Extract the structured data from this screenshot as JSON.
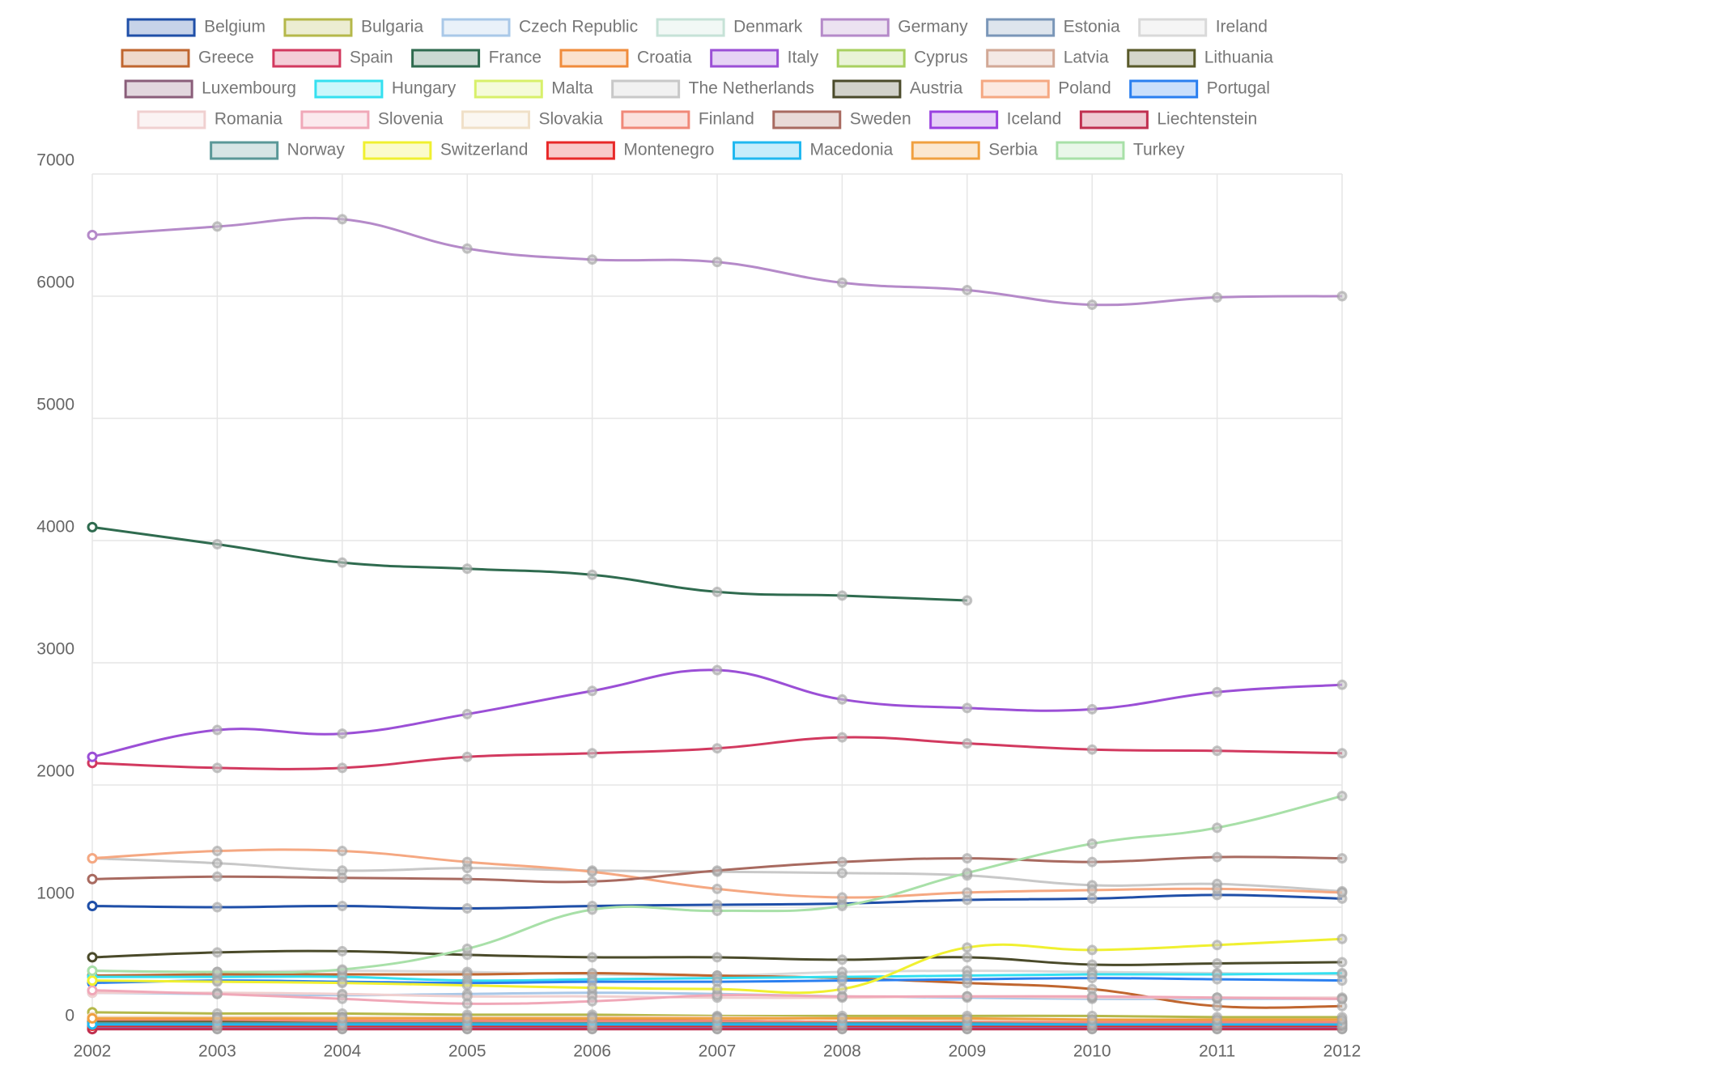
{
  "chart_data": {
    "type": "line",
    "categories": [
      "2002",
      "2003",
      "2004",
      "2005",
      "2006",
      "2007",
      "2008",
      "2009",
      "2010",
      "2011",
      "2012"
    ],
    "ylim": [
      0,
      7000
    ],
    "yticks": [
      0,
      1000,
      2000,
      3000,
      4000,
      5000,
      6000,
      7000
    ],
    "grid": true,
    "legend": "top",
    "series": [
      {
        "name": "Belgium",
        "color": "#1f4fa8",
        "values": [
          1010,
          1000,
          1010,
          990,
          1010,
          1020,
          1030,
          1060,
          1070,
          1100,
          1070
        ]
      },
      {
        "name": "Bulgaria",
        "color": "#b5b84a",
        "values": [
          140,
          130,
          130,
          120,
          120,
          110,
          110,
          110,
          110,
          100,
          100
        ]
      },
      {
        "name": "Czech Republic",
        "color": "#a9c8e8",
        "values": [
          300,
          290,
          280,
          290,
          300,
          290,
          270,
          260,
          250,
          250,
          250
        ]
      },
      {
        "name": "Denmark",
        "color": "#c6e2d7",
        "values": [
          80,
          80,
          70,
          70,
          80,
          60,
          60,
          50,
          50,
          40,
          40
        ]
      },
      {
        "name": "Germany",
        "color": "#b58ac9",
        "values": [
          6500,
          6570,
          6630,
          6390,
          6300,
          6280,
          6110,
          6050,
          5930,
          5990,
          6000
        ]
      },
      {
        "name": "Estonia",
        "color": "#7a96b8",
        "values": [
          60,
          60,
          50,
          50,
          60,
          50,
          40,
          30,
          30,
          30,
          30
        ]
      },
      {
        "name": "Ireland",
        "color": "#d9d9d9",
        "values": [
          480,
          470,
          480,
          470,
          450,
          440,
          470,
          480,
          470,
          460,
          450
        ]
      },
      {
        "name": "Greece",
        "color": "#c0662f",
        "values": [
          440,
          450,
          450,
          450,
          460,
          440,
          420,
          380,
          330,
          190,
          190
        ]
      },
      {
        "name": "Spain",
        "color": "#d2395f",
        "values": [
          2180,
          2140,
          2140,
          2230,
          2260,
          2300,
          2390,
          2340,
          2290,
          2280,
          2260
        ]
      },
      {
        "name": "France",
        "color": "#2f6b4f",
        "values": [
          4110,
          3970,
          3820,
          3770,
          3720,
          3580,
          3550,
          3510,
          null,
          null,
          null
        ]
      },
      {
        "name": "Croatia",
        "color": "#f08c3c",
        "values": [
          100,
          100,
          100,
          90,
          100,
          100,
          90,
          80,
          70,
          70,
          60
        ]
      },
      {
        "name": "Italy",
        "color": "#9b4fd6",
        "values": [
          2230,
          2450,
          2420,
          2580,
          2770,
          2940,
          2700,
          2630,
          2620,
          2760,
          2820
        ]
      },
      {
        "name": "Cyprus",
        "color": "#a8d060",
        "values": [
          30,
          30,
          30,
          30,
          30,
          30,
          30,
          20,
          20,
          20,
          20
        ]
      },
      {
        "name": "Latvia",
        "color": "#d2a896",
        "values": [
          60,
          60,
          60,
          60,
          60,
          60,
          50,
          40,
          30,
          30,
          30
        ]
      },
      {
        "name": "Lithuania",
        "color": "#595a2a",
        "values": [
          70,
          70,
          70,
          70,
          80,
          70,
          60,
          50,
          40,
          40,
          40
        ]
      },
      {
        "name": "Luxembourg",
        "color": "#8a5e7a",
        "values": [
          10,
          10,
          10,
          10,
          10,
          10,
          10,
          10,
          10,
          10,
          10
        ]
      },
      {
        "name": "Hungary",
        "color": "#35e0f0",
        "values": [
          430,
          430,
          430,
          400,
          410,
          420,
          430,
          440,
          450,
          450,
          460
        ]
      },
      {
        "name": "Malta",
        "color": "#d8f06a",
        "values": [
          5,
          5,
          5,
          5,
          5,
          5,
          5,
          5,
          5,
          5,
          5
        ]
      },
      {
        "name": "The Netherlands",
        "color": "#c8c8c8",
        "values": [
          1400,
          1360,
          1300,
          1320,
          1300,
          1290,
          1280,
          1260,
          1180,
          1190,
          1130
        ]
      },
      {
        "name": "Austria",
        "color": "#4a4a2a",
        "values": [
          590,
          630,
          640,
          610,
          590,
          590,
          570,
          590,
          530,
          540,
          550
        ]
      },
      {
        "name": "Poland",
        "color": "#f5a882",
        "values": [
          1400,
          1460,
          1460,
          1370,
          1290,
          1150,
          1080,
          1120,
          1140,
          1150,
          1120
        ]
      },
      {
        "name": "Portugal",
        "color": "#2a7ff0",
        "values": [
          380,
          400,
          390,
          380,
          390,
          390,
          400,
          410,
          420,
          410,
          400
        ]
      },
      {
        "name": "Romania",
        "color": "#f0d0d0",
        "values": [
          300,
          300,
          290,
          270,
          270,
          260,
          260,
          270,
          260,
          260,
          260
        ]
      },
      {
        "name": "Slovenia",
        "color": "#f0a8b8",
        "values": [
          320,
          290,
          250,
          210,
          230,
          280,
          270,
          270,
          270,
          260,
          250
        ]
      },
      {
        "name": "Slovakia",
        "color": "#f0e0c8",
        "values": [
          100,
          100,
          100,
          100,
          100,
          100,
          90,
          80,
          70,
          60,
          60
        ]
      },
      {
        "name": "Finland",
        "color": "#f08878",
        "values": [
          80,
          80,
          70,
          70,
          70,
          70,
          60,
          60,
          60,
          60,
          60
        ]
      },
      {
        "name": "Sweden",
        "color": "#a86a60",
        "values": [
          1230,
          1250,
          1240,
          1230,
          1210,
          1300,
          1370,
          1400,
          1370,
          1410,
          1400
        ]
      },
      {
        "name": "Iceland",
        "color": "#9a40e0",
        "values": [
          5,
          5,
          5,
          5,
          5,
          5,
          5,
          5,
          5,
          5,
          5
        ]
      },
      {
        "name": "Liechtenstein",
        "color": "#c03050",
        "values": [
          2,
          2,
          2,
          2,
          2,
          2,
          2,
          2,
          2,
          2,
          2
        ]
      },
      {
        "name": "Norway",
        "color": "#5a9898",
        "values": [
          50,
          50,
          50,
          50,
          50,
          50,
          50,
          50,
          40,
          40,
          40
        ]
      },
      {
        "name": "Switzerland",
        "color": "#f0f030",
        "values": [
          400,
          390,
          380,
          360,
          340,
          330,
          330,
          670,
          650,
          690,
          740
        ]
      },
      {
        "name": "Montenegro",
        "color": "#e82828",
        "values": [
          30,
          30,
          30,
          30,
          30,
          30,
          30,
          30,
          30,
          30,
          30
        ]
      },
      {
        "name": "Macedonia",
        "color": "#20b8f0",
        "values": [
          40,
          40,
          40,
          40,
          40,
          40,
          40,
          40,
          40,
          40,
          40
        ]
      },
      {
        "name": "Serbia",
        "color": "#f0a040",
        "values": [
          90,
          90,
          90,
          90,
          90,
          90,
          90,
          90,
          80,
          80,
          80
        ]
      },
      {
        "name": "Turkey",
        "color": "#a8e0a8",
        "values": [
          480,
          470,
          490,
          660,
          980,
          970,
          1010,
          1280,
          1520,
          1650,
          1910
        ]
      }
    ]
  }
}
